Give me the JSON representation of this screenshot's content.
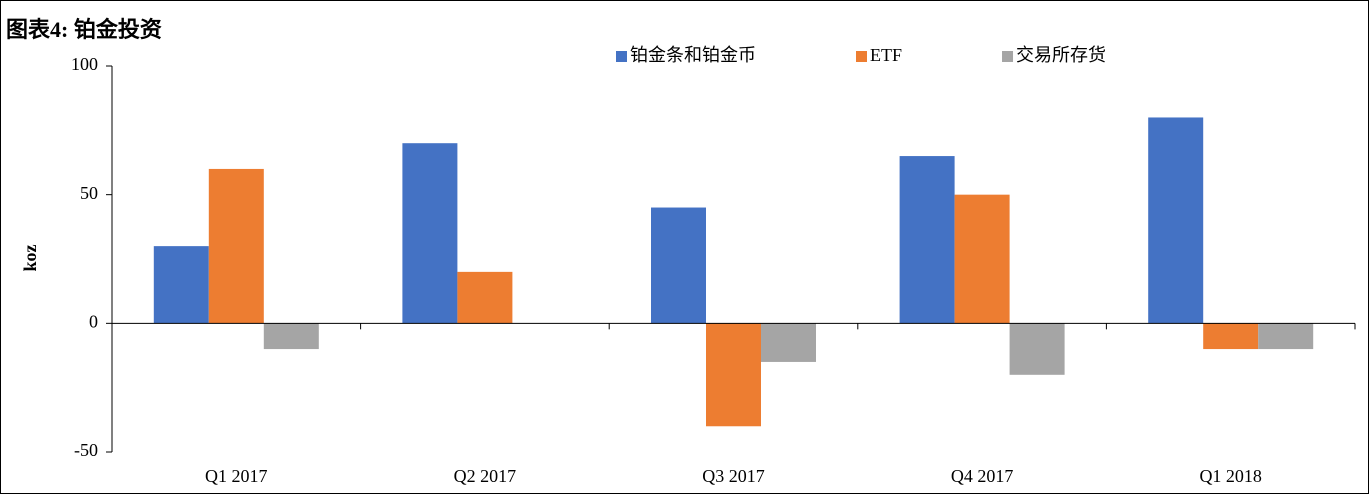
{
  "chart_data": {
    "type": "bar",
    "title": "图表4: 铂金投资",
    "ylabel": "koz",
    "categories": [
      "Q1 2017",
      "Q2 2017",
      "Q3 2017",
      "Q4 2017",
      "Q1 2018"
    ],
    "series": [
      {
        "name": "铂金条和铂金币",
        "color": "#4472c4",
        "values": [
          30,
          70,
          45,
          65,
          80
        ]
      },
      {
        "name": "ETF",
        "color": "#ed7d31",
        "values": [
          60,
          20,
          -40,
          50,
          -10
        ]
      },
      {
        "name": "交易所存货",
        "color": "#a5a5a5",
        "values": [
          -10,
          0,
          -15,
          -20,
          -10
        ]
      }
    ],
    "ylim": [
      -50,
      100
    ],
    "yticks": [
      -50,
      0,
      50,
      100
    ],
    "grid": false,
    "legend": "top"
  }
}
